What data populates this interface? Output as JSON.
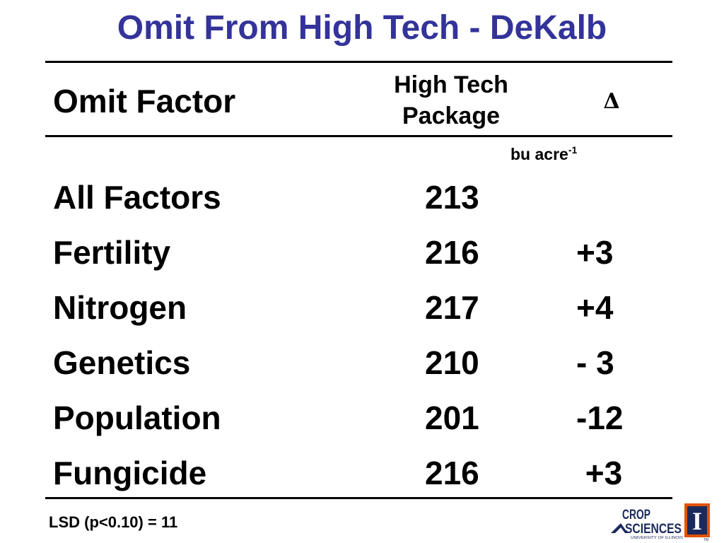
{
  "title": "Omit From High Tech - DeKalb",
  "header": {
    "factor": "Omit Factor",
    "package_line1": "High Tech",
    "package_line2": "Package",
    "delta": "Δ"
  },
  "units": {
    "base": "bu acre",
    "exponent": "-1"
  },
  "rows": [
    {
      "factor": "All Factors",
      "value": "213",
      "delta": ""
    },
    {
      "factor": "Fertility",
      "value": "216",
      "delta": "+3"
    },
    {
      "factor": "Nitrogen",
      "value": "217",
      "delta": "+4"
    },
    {
      "factor": "Genetics",
      "value": "210",
      "delta": "- 3"
    },
    {
      "factor": "Population",
      "value": "201",
      "delta": "-12"
    },
    {
      "factor": "Fungicide",
      "value": "216",
      "delta": " +3"
    }
  ],
  "footer": {
    "lsd": "LSD (p<0.10) = 11"
  },
  "logo": {
    "line1": "CROP",
    "line2": "SCIENCES",
    "subtitle": "UNIVERSITY OF ILLINOIS",
    "trademark": "TM",
    "emblem_letter": "I",
    "colors": {
      "navy": "#1b2a5c",
      "orange": "#e35205"
    }
  },
  "colors": {
    "title": "#33339a",
    "text": "#000000",
    "rule": "#000000"
  }
}
